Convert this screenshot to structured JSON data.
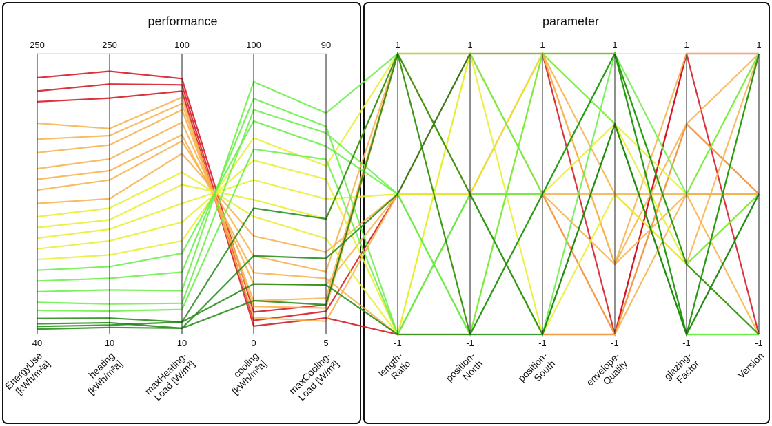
{
  "chart_data": {
    "type": "parallel-coordinates",
    "panels": [
      {
        "title": "performance"
      },
      {
        "title": "parameter"
      }
    ],
    "axes": [
      {
        "panel": 0,
        "label": [
          "EnergyUse",
          "[kWh/m²a]"
        ],
        "max": "250",
        "min": "40"
      },
      {
        "panel": 0,
        "label": [
          "heating",
          "[kWh/m²a]"
        ],
        "max": "250",
        "min": "10"
      },
      {
        "panel": 0,
        "label": [
          "maxHeating-",
          "Load [W/m²]"
        ],
        "max": "100",
        "min": "10"
      },
      {
        "panel": 0,
        "label": [
          "cooling",
          "[kWh/m²a]"
        ],
        "max": "100",
        "min": "0"
      },
      {
        "panel": 0,
        "label": [
          "maxCooling-",
          "Load [W/m²]"
        ],
        "max": "90",
        "min": "5"
      },
      {
        "panel": 1,
        "label": [
          "length-",
          "Ratio"
        ],
        "max": "1",
        "min": "-1"
      },
      {
        "panel": 1,
        "label": [
          "position-",
          "North"
        ],
        "max": "1",
        "min": "-1"
      },
      {
        "panel": 1,
        "label": [
          "position-",
          "South"
        ],
        "max": "1",
        "min": "-1"
      },
      {
        "panel": 1,
        "label": [
          "envelope-",
          "Quality"
        ],
        "max": "1",
        "min": "-1"
      },
      {
        "panel": 1,
        "label": [
          "glazing-",
          "Factor"
        ],
        "max": "1",
        "min": "-1"
      },
      {
        "panel": 1,
        "label": [
          "Version"
        ],
        "max": "1",
        "min": "-1"
      }
    ],
    "parameter_levels": {
      "length-Ratio": [
        1,
        0,
        -1
      ],
      "position-North": [
        1,
        0,
        -1
      ],
      "position-South": [
        1,
        0,
        -1
      ],
      "envelope-Quality": [
        1,
        0.5,
        0,
        -0.5,
        -1
      ],
      "glazing-Factor": [
        1,
        0.5,
        0,
        -0.5,
        -1
      ],
      "Version": [
        1,
        0,
        -1
      ]
    },
    "color_scale": {
      "low_energy": "#1f8a12",
      "mid_low": "#66ee44",
      "mid": "#e8ee2a",
      "mid_high": "#f7b04a",
      "high_energy": "#d4111a"
    },
    "series": [
      {
        "values": [
          232,
          235,
          92,
          8,
          14,
          1,
          0,
          -1,
          -1,
          1,
          1
        ]
      },
      {
        "values": [
          222,
          224,
          90,
          5,
          12,
          0,
          1,
          0,
          -1,
          0.5,
          0
        ]
      },
      {
        "values": [
          214,
          212,
          88,
          3,
          10,
          -1,
          0,
          1,
          -1,
          1,
          -1
        ]
      },
      {
        "values": [
          198,
          186,
          86,
          6,
          9,
          0,
          -1,
          0,
          -0.5,
          1,
          1
        ]
      },
      {
        "values": [
          186,
          180,
          84,
          10,
          13,
          1,
          0,
          -1,
          -1,
          0.5,
          0
        ]
      },
      {
        "values": [
          176,
          172,
          82,
          12,
          16,
          1,
          1,
          0,
          -1,
          0,
          -1
        ]
      },
      {
        "values": [
          164,
          160,
          78,
          18,
          20,
          0,
          0,
          1,
          -0.5,
          0.5,
          1
        ]
      },
      {
        "values": [
          156,
          150,
          74,
          22,
          22,
          -1,
          -1,
          1,
          -0.5,
          0,
          0
        ]
      },
      {
        "values": [
          148,
          142,
          72,
          28,
          24,
          1,
          1,
          1,
          0,
          -0.5,
          1
        ]
      },
      {
        "values": [
          138,
          126,
          68,
          35,
          30,
          0,
          0,
          0,
          0,
          0,
          0
        ]
      },
      {
        "values": [
          128,
          118,
          62,
          42,
          34,
          -1,
          1,
          -1,
          0,
          -0.5,
          -1
        ]
      },
      {
        "values": [
          120,
          108,
          58,
          48,
          40,
          1,
          -1,
          1,
          0.5,
          0,
          1
        ]
      },
      {
        "values": [
          112,
          100,
          52,
          55,
          46,
          0,
          0,
          -1,
          0.5,
          -0.5,
          0
        ]
      },
      {
        "values": [
          104,
          90,
          46,
          62,
          52,
          -1,
          1,
          0,
          0.5,
          -1,
          1
        ]
      },
      {
        "values": [
          96,
          78,
          40,
          70,
          56,
          1,
          0,
          1,
          1,
          -0.5,
          0
        ]
      },
      {
        "values": [
          88,
          68,
          36,
          76,
          62,
          0,
          -1,
          0,
          1,
          -1,
          -1
        ]
      },
      {
        "values": [
          80,
          58,
          30,
          84,
          68,
          -1,
          0,
          -1,
          1,
          -1,
          1
        ]
      },
      {
        "values": [
          72,
          48,
          24,
          90,
          72,
          1,
          1,
          0,
          1,
          -0.5,
          0
        ]
      },
      {
        "values": [
          64,
          36,
          20,
          80,
          66,
          0,
          -1,
          1,
          0.5,
          -1,
          -1
        ]
      },
      {
        "values": [
          58,
          30,
          18,
          66,
          58,
          -1,
          0,
          0,
          1,
          0,
          1
        ]
      },
      {
        "values": [
          52,
          24,
          14,
          45,
          40,
          1,
          -1,
          -1,
          0.5,
          -1,
          0
        ]
      },
      {
        "values": [
          48,
          20,
          12,
          28,
          28,
          0,
          1,
          1,
          1,
          -0.5,
          -1
        ]
      },
      {
        "values": [
          46,
          18,
          14,
          18,
          20,
          -1,
          -1,
          0,
          1,
          -1,
          1
        ]
      },
      {
        "values": [
          44,
          16,
          12,
          12,
          14,
          1,
          0,
          -1,
          0.5,
          -1,
          0
        ]
      }
    ]
  }
}
